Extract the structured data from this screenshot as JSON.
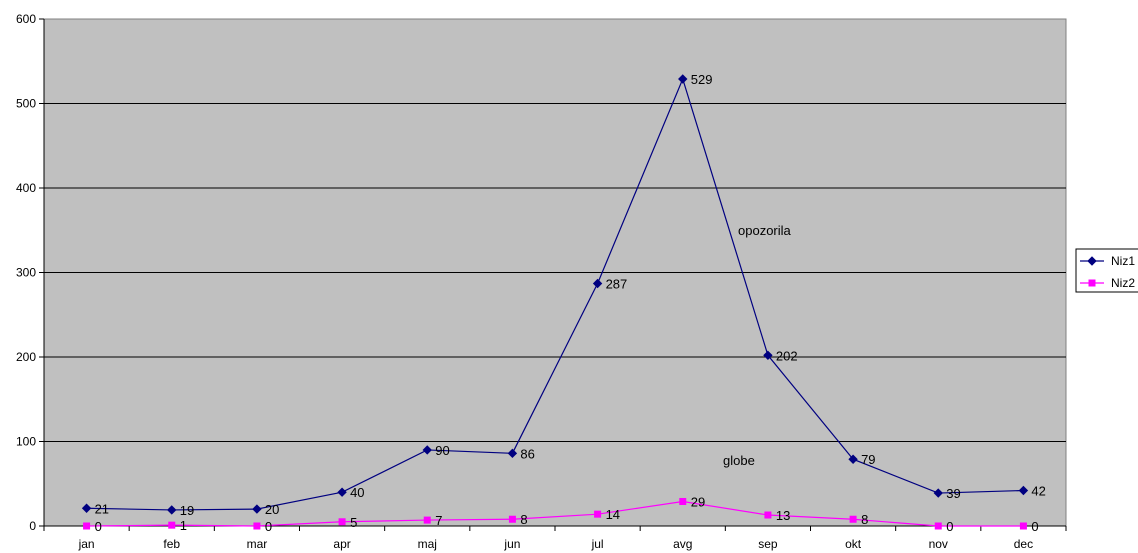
{
  "chart_data": {
    "type": "line",
    "categories": [
      "jan",
      "feb",
      "mar",
      "apr",
      "maj",
      "jun",
      "jul",
      "avg",
      "sep",
      "okt",
      "nov",
      "dec"
    ],
    "series": [
      {
        "name": "Niz1",
        "color": "#000080",
        "marker": "diamond",
        "values": [
          21,
          19,
          20,
          40,
          90,
          86,
          287,
          529,
          202,
          79,
          39,
          42
        ]
      },
      {
        "name": "Niz2",
        "color": "#ff00ff",
        "marker": "square",
        "values": [
          0,
          1,
          0,
          5,
          7,
          8,
          14,
          29,
          13,
          8,
          0,
          0
        ]
      }
    ],
    "annotations": [
      {
        "text": "opozorila",
        "color": "#333399"
      },
      {
        "text": "globe",
        "color": "#ff00ff"
      }
    ],
    "ylim": [
      0,
      600
    ],
    "yticks": [
      0,
      100,
      200,
      300,
      400,
      500,
      600
    ],
    "grid": true,
    "plot_background": "#c0c0c0",
    "legend_position": "right"
  }
}
